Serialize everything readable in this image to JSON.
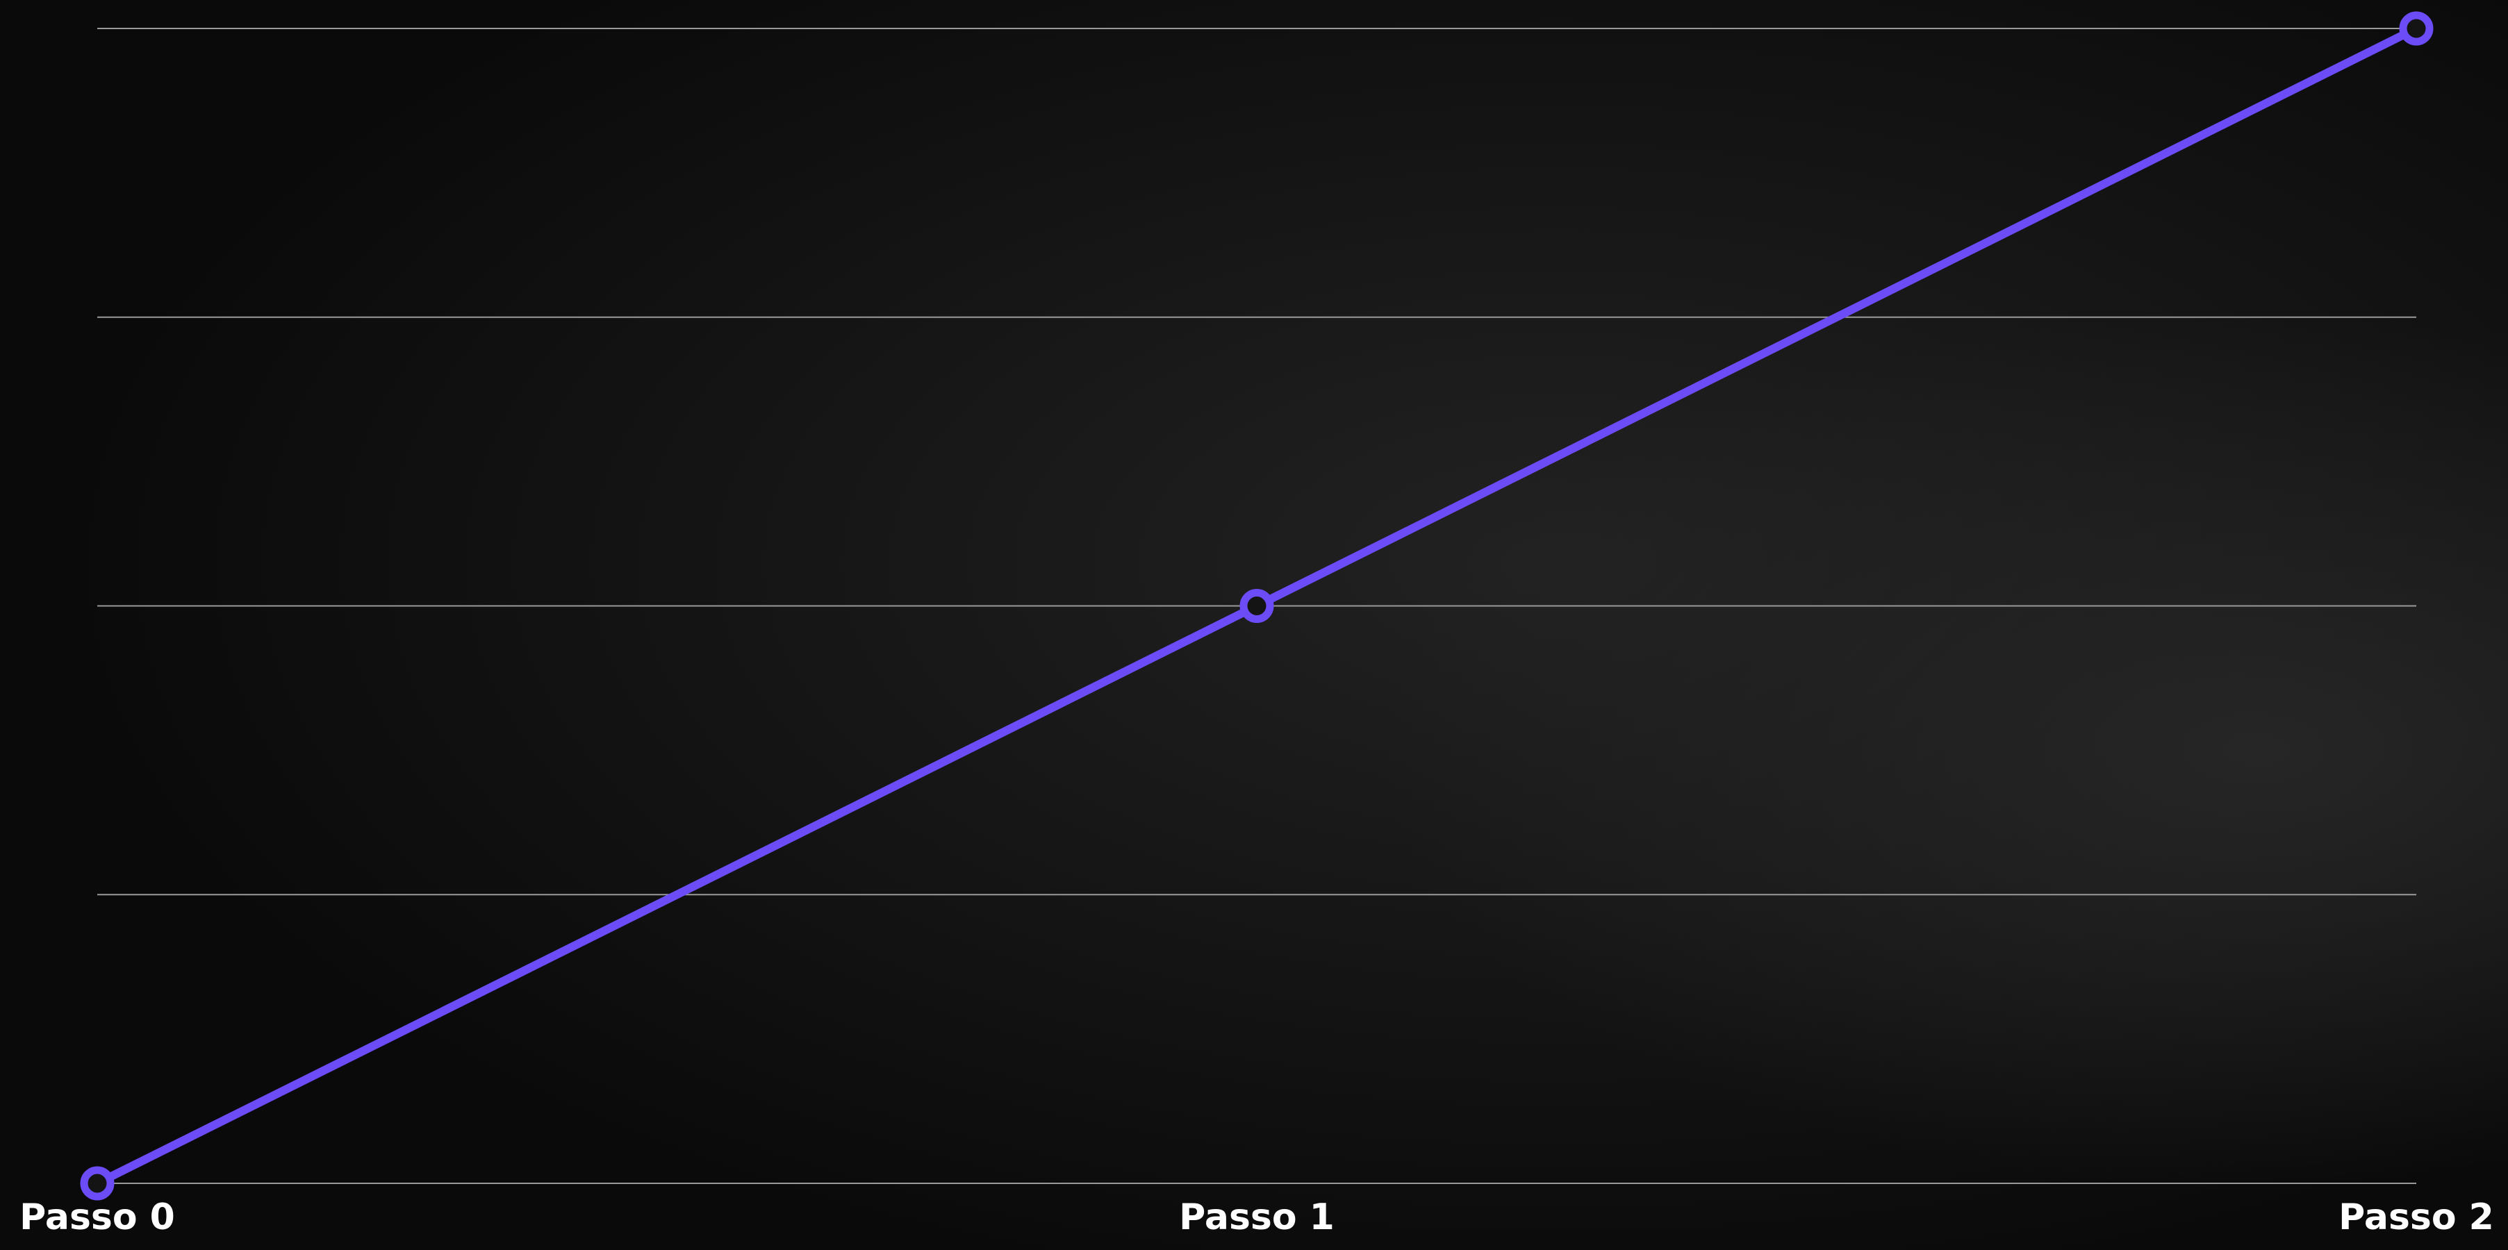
{
  "chart_data": {
    "type": "line",
    "categories": [
      "Passo 0",
      "Passo 1",
      "Passo 2"
    ],
    "values": [
      0,
      50,
      100
    ],
    "color": "#6b4cf6",
    "ylim": [
      0,
      100
    ],
    "yticks": [
      0,
      25,
      50,
      75,
      100
    ],
    "grid": true
  }
}
